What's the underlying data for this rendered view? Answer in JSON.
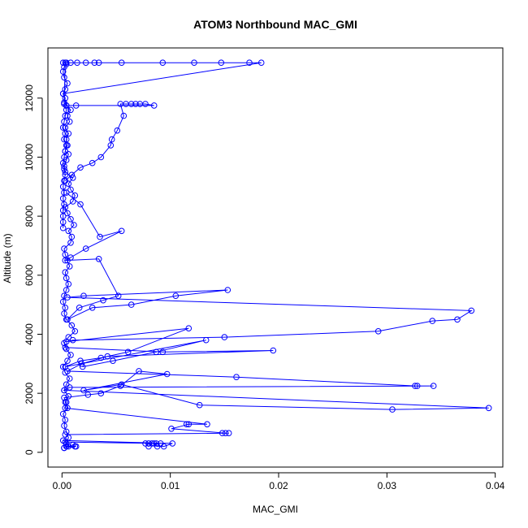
{
  "chart_data": {
    "type": "line",
    "title": "ATOM3 Northbound MAC_GMI",
    "xlabel": "MAC_GMI",
    "ylabel": "Altitude (m)",
    "xlim": [
      -0.0013,
      0.0407
    ],
    "ylim": [
      -500,
      13700
    ],
    "x_ticks": [
      0.0,
      0.01,
      0.02,
      0.03,
      0.04
    ],
    "x_tick_labels": [
      "0.00",
      "0.01",
      "0.02",
      "0.03",
      "0.04"
    ],
    "y_ticks": [
      0,
      2000,
      4000,
      6000,
      8000,
      10000,
      12000
    ],
    "y_tick_labels": [
      "0",
      "2000",
      "4000",
      "6000",
      "8000",
      "10000",
      "12000"
    ],
    "grid": false,
    "legend": "none",
    "marker": "open-circle",
    "series_color": "#0000ff",
    "series": [
      {
        "x": [
          0.0002,
          0.0004,
          0.0006,
          0.0004,
          0.0002,
          0.0003,
          0.0001,
          0.0005,
          0.0003,
          0.0006,
          0.0002,
          0.0004,
          0.0007,
          0.0003,
          0.0001,
          0.0005,
          0.0008,
          0.0004,
          0.0002,
          0.0006,
          0.0012,
          0.0009,
          0.0004,
          0.0002,
          0.0003,
          0.0001,
          0.0002,
          0.0004,
          0.0006,
          0.0004,
          0.0003,
          0.0007,
          0.0005,
          0.0003,
          0.0002,
          0.0008,
          0.0009,
          0.0006,
          0.0011,
          0.0008,
          0.0005,
          0.0003,
          0.001,
          0.0012,
          0.0008,
          0.0006,
          0.001,
          0.0003,
          0.0002,
          0.0004,
          0.0006,
          0.0003,
          0.0005,
          0.0004,
          0.0006,
          0.0003,
          0.0007,
          0.0005,
          0.0008,
          0.0004,
          0.0002,
          0.0003,
          0.0001,
          0.0003,
          0.0005,
          0.0002,
          0.0001,
          0.0002,
          0.0004,
          0.0003,
          0.0002,
          0.0004,
          0.0003,
          0.0002,
          0.0001,
          0.0003,
          0.0002,
          0.0004,
          0.0003,
          0.0002,
          0.0001,
          0.0002,
          0.0003,
          0.0002,
          0.0001,
          0.0002,
          0.0001,
          0.0002,
          0.0001,
          0.0001,
          0.0001,
          0.0001
        ],
        "y": [
          150,
          300,
          500,
          700,
          900,
          1100,
          1300,
          1500,
          1700,
          1900,
          2100,
          2300,
          2500,
          2700,
          2900,
          3100,
          3300,
          3500,
          3700,
          3900,
          4100,
          4300,
          4500,
          4700,
          4900,
          5100,
          5300,
          5500,
          5700,
          5900,
          6100,
          6300,
          6500,
          6700,
          6900,
          7100,
          7300,
          7500,
          7700,
          7900,
          8100,
          8300,
          8500,
          8700,
          8900,
          9100,
          9300,
          9500,
          9700,
          9900,
          10100,
          10200,
          10400,
          10600,
          10800,
          11000,
          11200,
          11400,
          11600,
          11750,
          11850,
          12000,
          12150,
          12300,
          12500,
          12700,
          12900,
          13050,
          13150,
          13200,
          11800,
          11600,
          11400,
          11200,
          11000,
          10800,
          10600,
          10400,
          10200,
          10000,
          9800,
          9600,
          9400,
          9200,
          9000,
          8800,
          8600,
          8400,
          8200,
          8000,
          7800,
          7600
        ]
      },
      {
        "x": [
          0.0001,
          0.0004,
          0.0008,
          0.0014,
          0.0022,
          0.003,
          0.0034,
          0.0055,
          0.0093,
          0.0122,
          0.0147,
          0.0173,
          0.0184,
          0.0001,
          0.0004,
          0.0013,
          0.0085,
          0.0077,
          0.0072,
          0.0068,
          0.0064,
          0.0059,
          0.0054,
          0.0057,
          0.0051,
          0.0046,
          0.0045,
          0.0036,
          0.0028,
          0.0017,
          0.0009,
          0.0003
        ],
        "y": [
          13200,
          13200,
          13200,
          13200,
          13200,
          13200,
          13200,
          13200,
          13200,
          13200,
          13200,
          13200,
          13200,
          12150,
          11750,
          11750,
          11750,
          11800,
          11800,
          11800,
          11800,
          11800,
          11800,
          11400,
          10900,
          10600,
          10400,
          10000,
          9800,
          9650,
          9400,
          9200
        ]
      },
      {
        "x": [
          0.0004,
          0.0017,
          0.0035,
          0.0055,
          0.0022,
          0.0008,
          0.0003,
          0.0034,
          0.0052,
          0.0038,
          0.0016,
          0.0005,
          0.0028,
          0.0064,
          0.0105,
          0.0153,
          0.002,
          0.0005,
          0.0378,
          0.0365,
          0.0342,
          0.0292,
          0.015,
          0.001,
          0.0004,
          0.0117,
          0.0061,
          0.0036,
          0.0017,
          0.0003,
          0.0133,
          0.0087,
          0.0047,
          0.0019
        ],
        "y": [
          8800,
          8400,
          7300,
          7500,
          6900,
          6600,
          6500,
          6550,
          5300,
          5150,
          4900,
          4500,
          4900,
          5000,
          5300,
          5500,
          5300,
          5250,
          4800,
          4500,
          4450,
          4100,
          3900,
          3800,
          3750,
          4200,
          3400,
          3200,
          3100,
          2900,
          3800,
          3400,
          3100,
          2900
        ]
      },
      {
        "x": [
          0.0003,
          0.0093,
          0.0195,
          0.0042,
          0.0018,
          0.0005,
          0.0161,
          0.0326,
          0.0328,
          0.0343,
          0.0007,
          0.0002,
          0.0394,
          0.0305,
          0.0127,
          0.0055,
          0.002,
          0.0097,
          0.0071,
          0.0054,
          0.0036,
          0.0024,
          0.0002,
          0.0004,
          0.0003,
          0.0134,
          0.0115,
          0.0117,
          0.0101,
          0.0151,
          0.0148,
          0.0154,
          0.0003
        ],
        "y": [
          3550,
          3400,
          3450,
          3250,
          3000,
          2750,
          2550,
          2250,
          2250,
          2250,
          2200,
          2100,
          1500,
          1450,
          1600,
          2300,
          2100,
          2650,
          2750,
          2250,
          2000,
          1950,
          1850,
          1700,
          1500,
          950,
          950,
          950,
          800,
          650,
          650,
          650,
          600
        ]
      },
      {
        "x": [
          0.0001,
          0.0102,
          0.0094,
          0.0088,
          0.0085,
          0.0083,
          0.008,
          0.0077,
          0.008,
          0.0087,
          0.0091,
          0.0003,
          0.0006,
          0.001,
          0.0012,
          0.0004,
          0.0013,
          0.0002
        ],
        "y": [
          400,
          300,
          200,
          200,
          300,
          300,
          200,
          300,
          300,
          300,
          300,
          350,
          200,
          250,
          200,
          200,
          200,
          150
        ]
      }
    ]
  }
}
